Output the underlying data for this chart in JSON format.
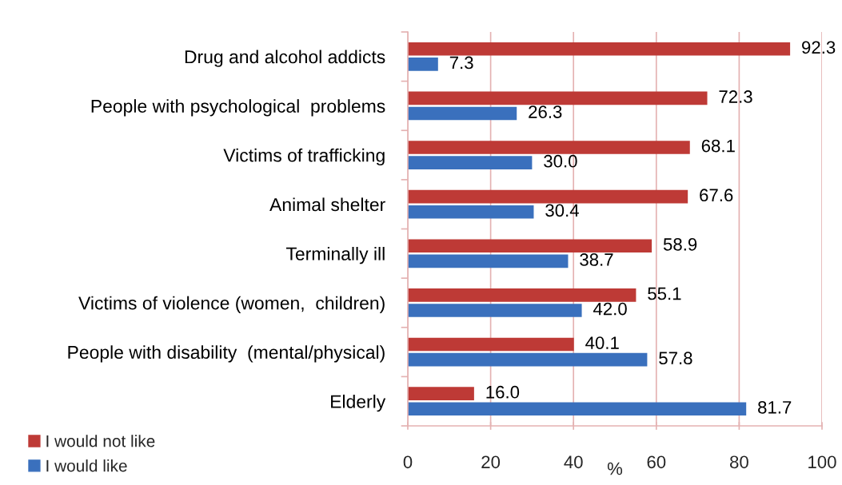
{
  "chart_data": {
    "type": "bar",
    "orientation": "horizontal",
    "categories": [
      "Drug and alcohol addicts",
      "People with psychological  problems",
      "Victims of trafficking",
      "Animal shelter",
      "Terminally ill",
      "Victims of violence (women,  children)",
      "People with disability  (mental/physical)",
      "Elderly"
    ],
    "series": [
      {
        "name": "I would not like",
        "color": "#be3a36",
        "values": [
          92.3,
          72.3,
          68.1,
          67.6,
          58.9,
          55.1,
          40.1,
          16.0
        ],
        "value_labels": [
          "92.3",
          "72.3",
          "68.1",
          "67.6",
          "58.9",
          "55.1",
          "40.1",
          "16.0"
        ]
      },
      {
        "name": "I would like",
        "color": "#3a70bd",
        "values": [
          7.3,
          26.3,
          30.0,
          30.4,
          38.7,
          42.0,
          57.8,
          81.7
        ],
        "value_labels": [
          "7.3",
          "26.3",
          "30.0",
          "30.4",
          "38.7",
          "42.0",
          "57.8",
          "81.7"
        ]
      }
    ],
    "xlabel": "%",
    "xlim": [
      0,
      100
    ],
    "xticks": [
      0,
      20,
      40,
      60,
      80,
      100
    ],
    "grid": "x",
    "legend": "bottom left"
  }
}
